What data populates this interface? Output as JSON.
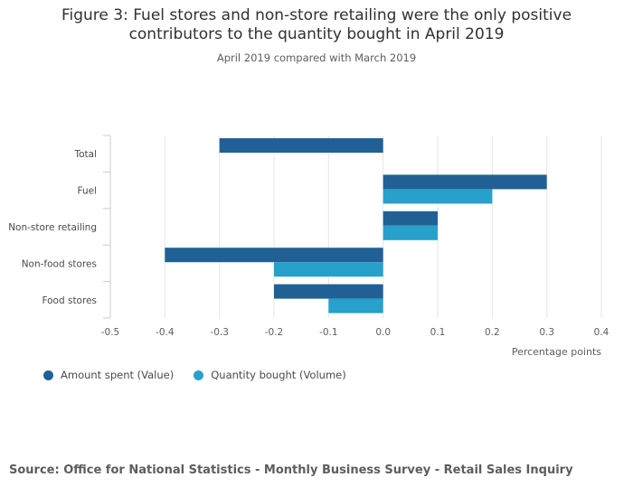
{
  "header": {
    "title": "Figure 3: Fuel stores and non-store retailing were the only positive\ncontributors to the quantity bought in April 2019",
    "subtitle": "April 2019 compared with March 2019"
  },
  "chart_data": {
    "type": "bar",
    "orientation": "horizontal",
    "categories": [
      "Total",
      "Fuel",
      "Non-store retailing",
      "Non-food stores",
      "Food stores"
    ],
    "series": [
      {
        "name": "Amount spent (Value)",
        "color": "#206095",
        "values": [
          -0.3,
          0.3,
          0.1,
          -0.4,
          -0.2
        ]
      },
      {
        "name": "Quantity bought (Volume)",
        "color": "#27a0cc",
        "values": [
          null,
          0.2,
          0.1,
          -0.2,
          -0.1
        ]
      }
    ],
    "xlabel": "Percentage points",
    "xlim": [
      -0.5,
      0.4
    ],
    "xticks": [
      -0.5,
      -0.4,
      -0.3,
      -0.2,
      -0.1,
      0.0,
      0.1,
      0.2,
      0.3,
      0.4
    ],
    "xtick_labels": [
      "-0.5",
      "-0.4",
      "-0.3",
      "-0.2",
      "-0.1",
      "0.0",
      "0.1",
      "0.2",
      "0.3",
      "0.4"
    ],
    "grid": true,
    "legend_position": "bottom-left"
  },
  "legend": {
    "items": [
      {
        "label": "Amount spent (Value)",
        "color": "#206095"
      },
      {
        "label": "Quantity bought (Volume)",
        "color": "#27a0cc"
      }
    ]
  },
  "footer": {
    "source": "Source: Office for National Statistics - Monthly Business Survey - Retail Sales Inquiry"
  }
}
